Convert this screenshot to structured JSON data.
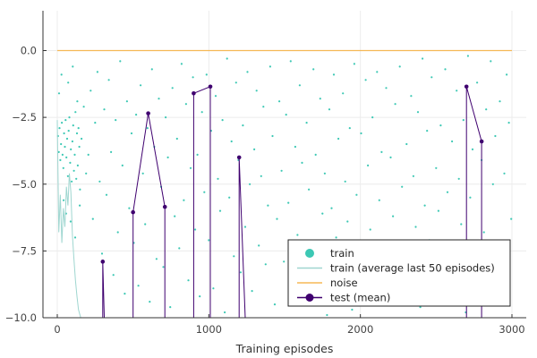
{
  "chart_data": {
    "type": "scatter",
    "title": "",
    "xlabel": "Training episodes",
    "ylabel": "",
    "xlim": [
      -100,
      3100
    ],
    "ylim": [
      -10.0,
      1.5
    ],
    "grid": true,
    "legend_placement": "bottom-right",
    "x_ticks": [
      0,
      1000,
      2000,
      3000
    ],
    "x_tick_labels": [
      "0",
      "1000",
      "2000",
      "3000"
    ],
    "y_ticks": [
      0.0,
      -2.5,
      -5.0,
      -7.5,
      -10.0
    ],
    "y_tick_labels": [
      "0.0",
      "−2.5",
      "−5.0",
      "−7.5",
      "−10.0"
    ],
    "series": [
      {
        "name": "train",
        "kind": "scatter",
        "color": "#3cc8b4",
        "description_of_distribution": "one return per training episode, spread between about -10 and 0",
        "points": [
          [
            5,
            -3.2
          ],
          [
            10,
            -3.8
          ],
          [
            15,
            -2.9
          ],
          [
            20,
            -4.1
          ],
          [
            25,
            -3.5
          ],
          [
            30,
            -2.7
          ],
          [
            35,
            -3.9
          ],
          [
            40,
            -4.4
          ],
          [
            45,
            -3.1
          ],
          [
            50,
            -3.6
          ],
          [
            55,
            -2.6
          ],
          [
            60,
            -4.0
          ],
          [
            65,
            -3.3
          ],
          [
            70,
            -4.7
          ],
          [
            75,
            -3.0
          ],
          [
            80,
            -2.5
          ],
          [
            85,
            -4.2
          ],
          [
            90,
            -3.7
          ],
          [
            95,
            -4.9
          ],
          [
            100,
            -3.4
          ],
          [
            105,
            -2.8
          ],
          [
            110,
            -4.5
          ],
          [
            115,
            -3.9
          ],
          [
            120,
            -2.3
          ],
          [
            125,
            -4.8
          ],
          [
            130,
            -3.1
          ],
          [
            135,
            -4.3
          ],
          [
            140,
            -2.9
          ],
          [
            145,
            -3.6
          ],
          [
            150,
            -5.2
          ],
          [
            12,
            -1.6
          ],
          [
            28,
            -0.9
          ],
          [
            42,
            -5.6
          ],
          [
            58,
            -6.1
          ],
          [
            72,
            -1.2
          ],
          [
            88,
            -6.4
          ],
          [
            102,
            -0.6
          ],
          [
            118,
            -7.0
          ],
          [
            132,
            -1.9
          ],
          [
            148,
            -5.8
          ],
          [
            160,
            -3.3
          ],
          [
            175,
            -2.1
          ],
          [
            190,
            -4.6
          ],
          [
            205,
            -3.9
          ],
          [
            220,
            -1.5
          ],
          [
            235,
            -6.3
          ],
          [
            250,
            -2.7
          ],
          [
            265,
            -0.8
          ],
          [
            280,
            -4.9
          ],
          [
            295,
            -7.6
          ],
          [
            310,
            -2.2
          ],
          [
            325,
            -5.4
          ],
          [
            340,
            -1.1
          ],
          [
            355,
            -3.8
          ],
          [
            370,
            -8.4
          ],
          [
            385,
            -2.6
          ],
          [
            400,
            -6.8
          ],
          [
            415,
            -0.4
          ],
          [
            430,
            -4.3
          ],
          [
            445,
            -9.1
          ],
          [
            460,
            -1.9
          ],
          [
            475,
            -5.9
          ],
          [
            490,
            -3.1
          ],
          [
            505,
            -7.2
          ],
          [
            520,
            -2.4
          ],
          [
            535,
            -8.8
          ],
          [
            550,
            -1.3
          ],
          [
            565,
            -4.6
          ],
          [
            580,
            -6.5
          ],
          [
            595,
            -2.9
          ],
          [
            610,
            -9.4
          ],
          [
            625,
            -0.7
          ],
          [
            640,
            -3.6
          ],
          [
            655,
            -7.8
          ],
          [
            670,
            -1.8
          ],
          [
            685,
            -5.1
          ],
          [
            700,
            -8.1
          ],
          [
            715,
            -2.5
          ],
          [
            730,
            -4.0
          ],
          [
            745,
            -9.6
          ],
          [
            760,
            -1.4
          ],
          [
            775,
            -6.2
          ],
          [
            790,
            -3.3
          ],
          [
            805,
            -7.4
          ],
          [
            820,
            -0.5
          ],
          [
            835,
            -5.6
          ],
          [
            850,
            -2.0
          ],
          [
            865,
            -8.6
          ],
          [
            880,
            -4.4
          ],
          [
            895,
            -1.0
          ],
          [
            910,
            -6.7
          ],
          [
            925,
            -3.9
          ],
          [
            940,
            -9.2
          ],
          [
            955,
            -2.3
          ],
          [
            970,
            -5.3
          ],
          [
            985,
            -0.9
          ],
          [
            1000,
            -7.1
          ],
          [
            1015,
            -3.0
          ],
          [
            1030,
            -8.9
          ],
          [
            1045,
            -1.7
          ],
          [
            1060,
            -4.8
          ],
          [
            1075,
            -6.0
          ],
          [
            1090,
            -2.6
          ],
          [
            1105,
            -9.8
          ],
          [
            1120,
            -0.3
          ],
          [
            1135,
            -5.5
          ],
          [
            1150,
            -3.4
          ],
          [
            1165,
            -7.7
          ],
          [
            1180,
            -1.2
          ],
          [
            1195,
            -4.1
          ],
          [
            1210,
            -8.3
          ],
          [
            1225,
            -2.8
          ],
          [
            1240,
            -6.6
          ],
          [
            1255,
            -0.8
          ],
          [
            1270,
            -5.0
          ],
          [
            1285,
            -9.0
          ],
          [
            1300,
            -3.7
          ],
          [
            1315,
            -1.5
          ],
          [
            1330,
            -7.3
          ],
          [
            1345,
            -4.7
          ],
          [
            1360,
            -2.1
          ],
          [
            1375,
            -8.0
          ],
          [
            1390,
            -5.8
          ],
          [
            1405,
            -0.6
          ],
          [
            1420,
            -3.2
          ],
          [
            1435,
            -9.5
          ],
          [
            1450,
            -6.3
          ],
          [
            1465,
            -1.9
          ],
          [
            1480,
            -4.5
          ],
          [
            1495,
            -7.9
          ],
          [
            1510,
            -2.4
          ],
          [
            1525,
            -5.7
          ],
          [
            1540,
            -0.4
          ],
          [
            1555,
            -8.5
          ],
          [
            1570,
            -3.6
          ],
          [
            1585,
            -6.9
          ],
          [
            1600,
            -1.3
          ],
          [
            1615,
            -4.2
          ],
          [
            1630,
            -9.3
          ],
          [
            1645,
            -2.7
          ],
          [
            1660,
            -5.2
          ],
          [
            1675,
            -7.5
          ],
          [
            1690,
            -0.7
          ],
          [
            1705,
            -3.9
          ],
          [
            1720,
            -8.7
          ],
          [
            1735,
            -1.8
          ],
          [
            1750,
            -6.1
          ],
          [
            1765,
            -4.6
          ],
          [
            1780,
            -9.9
          ],
          [
            1795,
            -2.2
          ],
          [
            1810,
            -5.9
          ],
          [
            1825,
            -0.9
          ],
          [
            1840,
            -7.0
          ],
          [
            1855,
            -3.3
          ],
          [
            1870,
            -8.2
          ],
          [
            1885,
            -1.6
          ],
          [
            1900,
            -4.9
          ],
          [
            1915,
            -6.4
          ],
          [
            1930,
            -2.9
          ],
          [
            1945,
            -9.7
          ],
          [
            1960,
            -0.5
          ],
          [
            1975,
            -5.4
          ],
          [
            1990,
            -7.6
          ],
          [
            2005,
            -3.1
          ],
          [
            2020,
            -8.8
          ],
          [
            2035,
            -1.1
          ],
          [
            2050,
            -4.3
          ],
          [
            2065,
            -6.7
          ],
          [
            2080,
            -2.5
          ],
          [
            2095,
            -9.1
          ],
          [
            2110,
            -0.8
          ],
          [
            2125,
            -5.6
          ],
          [
            2140,
            -3.8
          ],
          [
            2155,
            -7.3
          ],
          [
            2170,
            -1.4
          ],
          [
            2185,
            -8.4
          ],
          [
            2200,
            -4.0
          ],
          [
            2215,
            -6.2
          ],
          [
            2230,
            -2.0
          ],
          [
            2245,
            -9.4
          ],
          [
            2260,
            -0.6
          ],
          [
            2275,
            -5.1
          ],
          [
            2290,
            -7.8
          ],
          [
            2305,
            -3.5
          ],
          [
            2320,
            -8.9
          ],
          [
            2335,
            -1.7
          ],
          [
            2350,
            -4.7
          ],
          [
            2365,
            -6.6
          ],
          [
            2380,
            -2.3
          ],
          [
            2395,
            -9.6
          ],
          [
            2410,
            -0.3
          ],
          [
            2425,
            -5.8
          ],
          [
            2440,
            -3.0
          ],
          [
            2455,
            -7.1
          ],
          [
            2470,
            -1.0
          ],
          [
            2485,
            -8.6
          ],
          [
            2500,
            -4.4
          ],
          [
            2515,
            -6.0
          ],
          [
            2530,
            -2.8
          ],
          [
            2545,
            -9.2
          ],
          [
            2560,
            -0.7
          ],
          [
            2575,
            -5.3
          ],
          [
            2590,
            -7.7
          ],
          [
            2605,
            -3.4
          ],
          [
            2620,
            -8.1
          ],
          [
            2635,
            -1.5
          ],
          [
            2650,
            -4.8
          ],
          [
            2665,
            -6.5
          ],
          [
            2680,
            -2.6
          ],
          [
            2695,
            -9.8
          ],
          [
            2710,
            -0.2
          ],
          [
            2725,
            -5.5
          ],
          [
            2740,
            -3.7
          ],
          [
            2755,
            -7.4
          ],
          [
            2770,
            -1.2
          ],
          [
            2785,
            -8.3
          ],
          [
            2800,
            -4.1
          ],
          [
            2815,
            -6.8
          ],
          [
            2830,
            -2.2
          ],
          [
            2845,
            -9.0
          ],
          [
            2860,
            -0.4
          ],
          [
            2875,
            -5.0
          ],
          [
            2890,
            -3.2
          ],
          [
            2905,
            -7.2
          ],
          [
            2920,
            -1.9
          ],
          [
            2935,
            -8.7
          ],
          [
            2950,
            -4.6
          ],
          [
            2965,
            -0.9
          ],
          [
            2980,
            -2.7
          ],
          [
            2995,
            -6.3
          ]
        ]
      },
      {
        "name": "train (average last 50 episodes)",
        "kind": "line",
        "color": "#9fd6d0",
        "points": [
          [
            0,
            -2.6
          ],
          [
            10,
            -6.8
          ],
          [
            20,
            -5.4
          ],
          [
            30,
            -7.2
          ],
          [
            40,
            -5.9
          ],
          [
            50,
            -6.6
          ],
          [
            60,
            -5.1
          ],
          [
            70,
            -5.8
          ],
          [
            80,
            -4.6
          ],
          [
            90,
            -5.3
          ],
          [
            100,
            -6.9
          ],
          [
            110,
            -7.8
          ],
          [
            120,
            -8.6
          ],
          [
            130,
            -9.2
          ],
          [
            140,
            -9.7
          ],
          [
            155,
            -10.0
          ]
        ]
      },
      {
        "name": "noise",
        "kind": "line",
        "color": "#f5b856",
        "points": [
          [
            0,
            0.0
          ],
          [
            3000,
            0.0
          ]
        ]
      },
      {
        "name": "test (mean)",
        "kind": "line-markers",
        "color": "#3f006f",
        "points": [
          [
            300,
            -10.0
          ],
          [
            300,
            -7.9
          ],
          [
            310,
            -10.0
          ],
          [
            500,
            -10.0
          ],
          [
            500,
            -6.05
          ],
          [
            600,
            -2.35
          ],
          [
            710,
            -5.85
          ],
          [
            710,
            -10.0
          ],
          [
            900,
            -10.0
          ],
          [
            900,
            -1.6
          ],
          [
            1010,
            -1.35
          ],
          [
            1010,
            -10.0
          ],
          [
            1200,
            -10.0
          ],
          [
            1200,
            -4.0
          ],
          [
            1240,
            -10.0
          ],
          [
            2700,
            -10.0
          ],
          [
            2700,
            -1.35
          ],
          [
            2800,
            -3.4
          ],
          [
            2800,
            -10.0
          ]
        ],
        "markers": [
          [
            300,
            -7.9
          ],
          [
            500,
            -6.05
          ],
          [
            600,
            -2.35
          ],
          [
            710,
            -5.85
          ],
          [
            900,
            -1.6
          ],
          [
            1010,
            -1.35
          ],
          [
            1200,
            -4.0
          ],
          [
            2700,
            -1.35
          ],
          [
            2800,
            -3.4
          ]
        ]
      }
    ]
  },
  "legend": {
    "items": [
      {
        "label": "train",
        "symbol": "dot"
      },
      {
        "label": "train (average last 50 episodes)",
        "symbol": "line"
      },
      {
        "label": "noise",
        "symbol": "line"
      },
      {
        "label": "test (mean)",
        "symbol": "line-dot"
      }
    ]
  }
}
